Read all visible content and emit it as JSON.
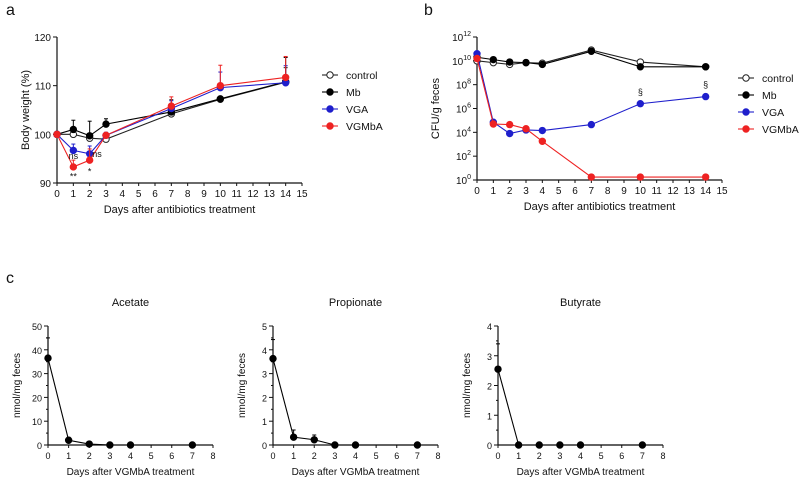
{
  "panel_labels": [
    "a",
    "b",
    "c"
  ],
  "chart_data": [
    {
      "id": "a",
      "type": "line",
      "xlabel": "Days after antibiotics treatment",
      "ylabel": "Body weight (%)",
      "xlim": [
        0,
        15
      ],
      "ylim": [
        90,
        120
      ],
      "xticks": [
        0,
        1,
        2,
        3,
        4,
        5,
        6,
        7,
        8,
        9,
        10,
        11,
        12,
        13,
        14,
        15
      ],
      "yticks": [
        90,
        100,
        110,
        120
      ],
      "legend": "right",
      "x": [
        0,
        1,
        2,
        3,
        7,
        10,
        14
      ],
      "series": [
        {
          "name": "control",
          "color": "#222222",
          "marker": "open-circle",
          "values": [
            100,
            100,
            99.2,
            99,
            104.2,
            107.2,
            110.7
          ],
          "err": [
            0,
            0.6,
            0.7,
            0.3,
            0.6,
            0.4,
            3
          ]
        },
        {
          "name": "Mb",
          "color": "#000000",
          "marker": "filled-circle",
          "values": [
            100,
            101,
            99.7,
            102.1,
            104.6,
            107.3,
            110.8
          ],
          "err": [
            0,
            1.9,
            3,
            1.1,
            2.5,
            0.3,
            5
          ]
        },
        {
          "name": "VGA",
          "color": "#1f1fcc",
          "marker": "filled-circle",
          "values": [
            100,
            96.7,
            96,
            99.8,
            105.3,
            109.6,
            110.6
          ],
          "err": [
            0,
            1.3,
            1.6,
            0.6,
            1.6,
            3.2,
            3.5
          ]
        },
        {
          "name": "VGMbA",
          "color": "#ee2222",
          "marker": "filled-circle",
          "values": [
            100,
            93.3,
            94.7,
            99.8,
            105.8,
            110,
            111.7
          ],
          "err": [
            0,
            1.4,
            2.3,
            0.6,
            1.9,
            4.2,
            4.3
          ]
        }
      ],
      "annotations": [
        {
          "x": 1,
          "y": 95.5,
          "text": "ns"
        },
        {
          "x": 2.45,
          "y": 96,
          "text": "ns"
        },
        {
          "x": 1,
          "y": 91.3,
          "text": "**"
        },
        {
          "x": 2,
          "y": 92.4,
          "text": "*"
        }
      ]
    },
    {
      "id": "b",
      "type": "line",
      "yscale": "log",
      "xlabel": "Days after antibiotics treatment",
      "ylabel": "CFU/g feces",
      "xlim": [
        0,
        15
      ],
      "ylim": [
        1,
        1000000000000.0
      ],
      "xticks": [
        0,
        1,
        2,
        3,
        4,
        5,
        6,
        7,
        8,
        9,
        10,
        11,
        12,
        13,
        14,
        15
      ],
      "yticks_exponents": [
        0,
        2,
        4,
        6,
        8,
        10,
        12
      ],
      "legend": "right",
      "x": [
        0,
        1,
        2,
        3,
        4,
        7,
        10,
        14
      ],
      "series": [
        {
          "name": "control",
          "color": "#222222",
          "marker": "open-circle",
          "log10_values": [
            10.0,
            9.85,
            9.7,
            9.85,
            9.8,
            10.9,
            9.9,
            9.5
          ]
        },
        {
          "name": "Mb",
          "color": "#000000",
          "marker": "filled-circle",
          "log10_values": [
            10.3,
            10.1,
            9.9,
            9.85,
            9.7,
            10.8,
            9.5,
            9.5
          ]
        },
        {
          "name": "VGA",
          "color": "#1f1fcc",
          "marker": "filled-circle",
          "log10_values": [
            10.6,
            4.85,
            3.9,
            4.2,
            4.15,
            4.65,
            6.4,
            7.0
          ]
        },
        {
          "name": "VGMbA",
          "color": "#ee2222",
          "marker": "filled-circle",
          "log10_values": [
            10.2,
            4.7,
            4.65,
            4.3,
            3.25,
            0.25,
            0.25,
            0.25
          ]
        }
      ],
      "annotations": [
        {
          "x": 10,
          "log10_y": 7.4,
          "text": "§"
        },
        {
          "x": 14,
          "log10_y": 8.0,
          "text": "§"
        }
      ]
    },
    {
      "id": "c-acetate",
      "type": "line",
      "title": "Acetate",
      "xlabel": "Days after VGMbA treatment",
      "ylabel": "nmol/mg feces",
      "xlim": [
        0,
        8
      ],
      "ylim": [
        0,
        50
      ],
      "xticks": [
        0,
        1,
        2,
        3,
        4,
        5,
        6,
        7,
        8
      ],
      "yticks": [
        0,
        10,
        20,
        30,
        40,
        50
      ],
      "x": [
        0,
        1,
        2,
        3,
        4,
        7
      ],
      "series": [
        {
          "color": "#000000",
          "values": [
            36.5,
            2,
            0.4,
            0,
            0,
            0
          ],
          "err": [
            8.5,
            1.2,
            0.3,
            0,
            0,
            0
          ]
        }
      ]
    },
    {
      "id": "c-propionate",
      "type": "line",
      "title": "Propionate",
      "xlabel": "Days after VGMbA treatment",
      "ylabel": "nmol/mg feces",
      "xlim": [
        0,
        8
      ],
      "ylim": [
        0,
        5
      ],
      "xticks": [
        0,
        1,
        2,
        3,
        4,
        5,
        6,
        7,
        8
      ],
      "yticks": [
        0,
        1,
        2,
        3,
        4,
        5
      ],
      "x": [
        0,
        1,
        2,
        3,
        4,
        7
      ],
      "series": [
        {
          "color": "#000000",
          "values": [
            3.63,
            0.33,
            0.22,
            0,
            0,
            0
          ],
          "err": [
            0.8,
            0.3,
            0.2,
            0,
            0,
            0
          ]
        }
      ]
    },
    {
      "id": "c-butyrate",
      "type": "line",
      "title": "Butyrate",
      "xlabel": "Days after VGMbA treatment",
      "ylabel": "nmol/mg feces",
      "xlim": [
        0,
        8
      ],
      "ylim": [
        0,
        4
      ],
      "xticks": [
        0,
        1,
        2,
        3,
        4,
        5,
        6,
        7,
        8
      ],
      "yticks": [
        0,
        1,
        2,
        3,
        4
      ],
      "x": [
        0,
        1,
        2,
        3,
        4,
        7
      ],
      "series": [
        {
          "color": "#000000",
          "values": [
            2.55,
            0,
            0,
            0,
            0,
            0
          ],
          "err": [
            0.85,
            0,
            0,
            0,
            0,
            0
          ]
        }
      ]
    }
  ]
}
